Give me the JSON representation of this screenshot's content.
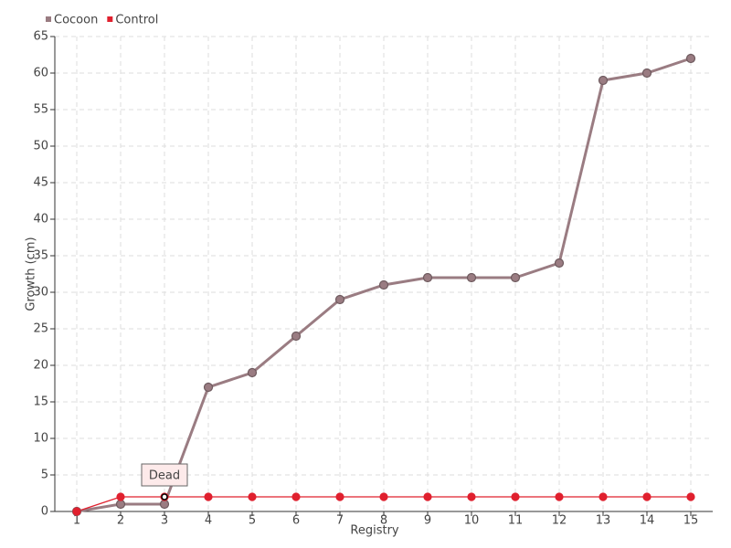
{
  "chart_data": {
    "type": "line",
    "x_label": "Registry",
    "y_label": "Growth (cm)",
    "x": [
      1,
      2,
      3,
      4,
      5,
      6,
      7,
      8,
      9,
      10,
      11,
      12,
      13,
      14,
      15
    ],
    "xlim": [
      0.5,
      15.5
    ],
    "xticks": [
      1,
      2,
      3,
      4,
      5,
      6,
      7,
      8,
      9,
      10,
      11,
      12,
      13,
      14,
      15
    ],
    "ylim": [
      0,
      65
    ],
    "yticks": [
      0,
      5,
      10,
      15,
      20,
      25,
      30,
      35,
      40,
      45,
      50,
      55,
      60,
      65
    ],
    "grid": true,
    "legend": "top-left",
    "series": [
      {
        "name": "Cocoon",
        "color": "#9a7c82",
        "values": [
          0,
          1,
          1,
          17,
          19,
          24,
          29,
          31,
          32,
          32,
          32,
          34,
          59,
          60,
          62
        ]
      },
      {
        "name": "Control",
        "color": "#e0202e",
        "values": [
          0,
          2,
          2,
          2,
          2,
          2,
          2,
          2,
          2,
          2,
          2,
          2,
          2,
          2,
          2
        ]
      }
    ],
    "annotations": [
      {
        "text": "Dead",
        "x": 3,
        "y": 2
      }
    ]
  }
}
